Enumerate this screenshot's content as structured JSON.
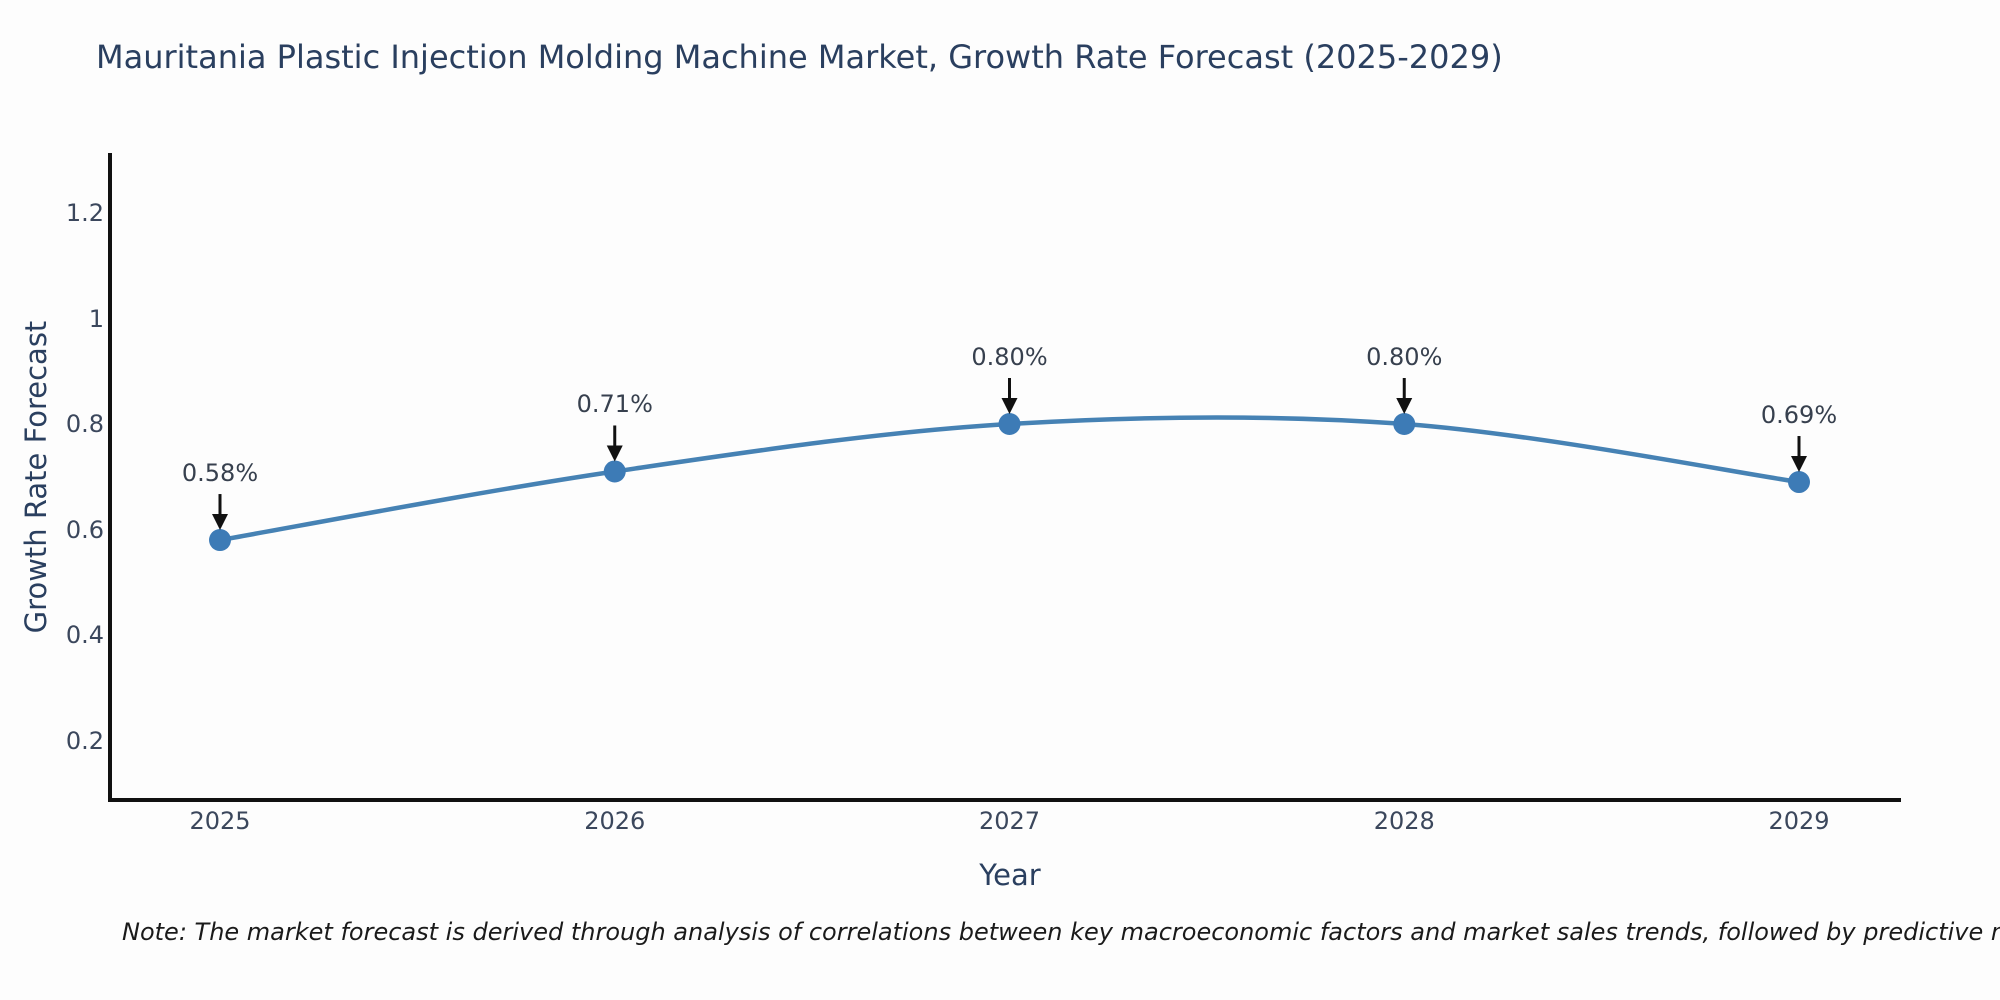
{
  "page": {
    "background": "#fdfdfd"
  },
  "chart_data": {
    "type": "line",
    "title": "Mauritania Plastic Injection Molding Machine Market, Growth Rate Forecast (2025-2029)",
    "xlabel": "Year",
    "ylabel": "Growth Rate Forecast",
    "x": [
      2025,
      2026,
      2027,
      2028,
      2029
    ],
    "series": [
      {
        "name": "Growth Rate Forecast",
        "values": [
          0.58,
          0.71,
          0.8,
          0.8,
          0.69
        ]
      }
    ],
    "point_labels": [
      "0.58%",
      "0.71%",
      "0.80%",
      "0.80%",
      "0.69%"
    ],
    "xticks": {
      "values": [
        2025,
        2026,
        2027,
        2028,
        2029
      ],
      "labels": [
        "2025",
        "2026",
        "2027",
        "2028",
        "2029"
      ]
    },
    "yticks": {
      "values": [
        0.2,
        0.4,
        0.6,
        0.8,
        1.0,
        1.2
      ],
      "labels": [
        "0.2",
        "0.4",
        "0.6",
        "0.8",
        "1",
        "1.2"
      ]
    },
    "xlim": [
      2024.73,
      2029.25
    ],
    "ylim": [
      0.09,
      1.31
    ],
    "grid": false,
    "legend": "none",
    "line_shape": "spline",
    "annotations_have_arrows": true,
    "colors": {
      "line": "#4682b4",
      "marker": "#3d7bb6",
      "arrow": "#111111",
      "axis": "#111111",
      "title_text": "#2a3f5f",
      "tick_text": "#3b475c",
      "annotation_text": "#37404e"
    }
  },
  "note": {
    "text": "Note: The market forecast is derived through analysis of correlations between key macroeconomic factors and market sales trends, followed by predictive modeling to project future sales"
  }
}
